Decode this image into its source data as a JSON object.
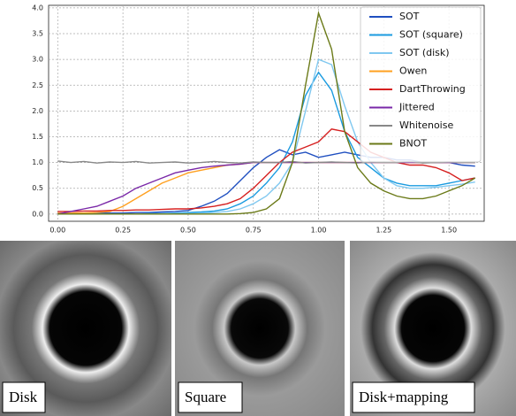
{
  "chart_data": {
    "type": "line",
    "x": [
      0,
      0.05,
      0.1,
      0.15,
      0.2,
      0.25,
      0.3,
      0.35,
      0.4,
      0.45,
      0.5,
      0.55,
      0.6,
      0.65,
      0.7,
      0.75,
      0.8,
      0.85,
      0.9,
      0.95,
      1.0,
      1.05,
      1.1,
      1.15,
      1.2,
      1.25,
      1.3,
      1.35,
      1.4,
      1.45,
      1.5,
      1.55,
      1.6
    ],
    "xlim": [
      -0.035,
      1.635
    ],
    "ylim": [
      -0.14,
      4.05
    ],
    "xticks": [
      {
        "value": 0,
        "label": "0.00"
      },
      {
        "value": 0.25,
        "label": "0.25"
      },
      {
        "value": 0.5,
        "label": "0.50"
      },
      {
        "value": 0.75,
        "label": "0.75"
      },
      {
        "value": 1,
        "label": "1.00"
      },
      {
        "value": 1.25,
        "label": "1.25"
      },
      {
        "value": 1.5,
        "label": "1.50"
      }
    ],
    "yticks": [
      {
        "value": 0,
        "label": "0.0"
      },
      0.5,
      {
        "value": 1,
        "label": "1.0"
      },
      1.5,
      {
        "value": 2,
        "label": "2.0"
      },
      2.5,
      {
        "value": 3,
        "label": "3.0"
      },
      3.5,
      {
        "value": 4,
        "label": "4.0"
      }
    ],
    "grid": true,
    "legend": "upper right",
    "series": [
      {
        "name": "SOT",
        "color": "#1f4fc0",
        "values": [
          0.02,
          0.02,
          0.02,
          0.02,
          0.02,
          0.02,
          0.03,
          0.03,
          0.04,
          0.05,
          0.07,
          0.15,
          0.25,
          0.4,
          0.65,
          0.9,
          1.1,
          1.25,
          1.15,
          1.2,
          1.1,
          1.15,
          1.2,
          1.15,
          1.1,
          1.1,
          1.05,
          1.05,
          1.0,
          1.0,
          1.0,
          0.95,
          0.93
        ]
      },
      {
        "name": "SOT (square)",
        "color": "#1a9be0",
        "values": [
          0,
          0,
          0,
          0,
          0,
          0,
          0,
          0.01,
          0.01,
          0.02,
          0.03,
          0.04,
          0.06,
          0.1,
          0.2,
          0.35,
          0.6,
          0.9,
          1.4,
          2.3,
          2.75,
          2.4,
          1.6,
          1.1,
          0.9,
          0.7,
          0.6,
          0.55,
          0.55,
          0.55,
          0.6,
          0.65,
          0.7
        ]
      },
      {
        "name": "SOT (disk)",
        "color": "#80c8f0",
        "values": [
          0,
          0,
          0,
          0,
          0,
          0,
          0,
          0,
          0,
          0.01,
          0.01,
          0.02,
          0.03,
          0.05,
          0.1,
          0.2,
          0.35,
          0.6,
          1.0,
          2.0,
          3.0,
          2.9,
          2.1,
          1.4,
          1.0,
          0.7,
          0.55,
          0.5,
          0.5,
          0.52,
          0.55,
          0.58,
          0.62
        ]
      },
      {
        "name": "Owen",
        "color": "#ffa020",
        "values": [
          0.02,
          0.02,
          0.02,
          0.03,
          0.05,
          0.15,
          0.3,
          0.45,
          0.6,
          0.7,
          0.8,
          0.85,
          0.9,
          0.95,
          0.97,
          1.0,
          1.0,
          1.0,
          1.0,
          1.0,
          1.0,
          1.0,
          1.0,
          1.0,
          1.0,
          1.0,
          1.0,
          1.0,
          1.0,
          1.0,
          1.0,
          1.0,
          1.0
        ]
      },
      {
        "name": "DartThrowing",
        "color": "#d62020",
        "values": [
          0.05,
          0.05,
          0.06,
          0.06,
          0.07,
          0.07,
          0.08,
          0.08,
          0.09,
          0.1,
          0.1,
          0.12,
          0.15,
          0.2,
          0.3,
          0.5,
          0.75,
          1.0,
          1.2,
          1.3,
          1.4,
          1.65,
          1.6,
          1.4,
          1.2,
          1.1,
          1.0,
          0.95,
          0.95,
          0.9,
          0.8,
          0.65,
          0.7
        ]
      },
      {
        "name": "Jittered",
        "color": "#7a28a8",
        "values": [
          0,
          0.05,
          0.1,
          0.15,
          0.25,
          0.35,
          0.5,
          0.6,
          0.7,
          0.8,
          0.85,
          0.9,
          0.93,
          0.95,
          0.97,
          1.0,
          1.0,
          1.0,
          1.0,
          1.0,
          1.0,
          1.0,
          1.0,
          1.0,
          1.0,
          1.0,
          1.0,
          1.0,
          1.0,
          1.0,
          1.0,
          1.0,
          1.0
        ]
      },
      {
        "name": "Whitenoise",
        "color": "#888888",
        "values": [
          1.03,
          1.0,
          1.02,
          0.99,
          1.01,
          1.0,
          1.02,
          0.99,
          1.0,
          1.01,
          0.99,
          1.0,
          1.02,
          1.0,
          0.99,
          1.01,
          1.0,
          1.0,
          1.02,
          0.99,
          1.0,
          1.01,
          1.0,
          0.99,
          1.01,
          1.0,
          1.0,
          1.02,
          0.99,
          1.0,
          1.01,
          1.0,
          1.0
        ]
      },
      {
        "name": "BNOT",
        "color": "#6b7a18",
        "values": [
          0,
          0,
          0,
          0,
          0,
          0,
          0,
          0,
          0,
          0,
          0,
          0,
          0,
          0,
          0.01,
          0.03,
          0.1,
          0.3,
          1.0,
          2.5,
          3.9,
          3.2,
          1.6,
          0.9,
          0.6,
          0.45,
          0.35,
          0.3,
          0.3,
          0.35,
          0.45,
          0.55,
          0.7
        ]
      }
    ]
  },
  "panels": [
    "Disk",
    "Square",
    "Disk+mapping"
  ]
}
